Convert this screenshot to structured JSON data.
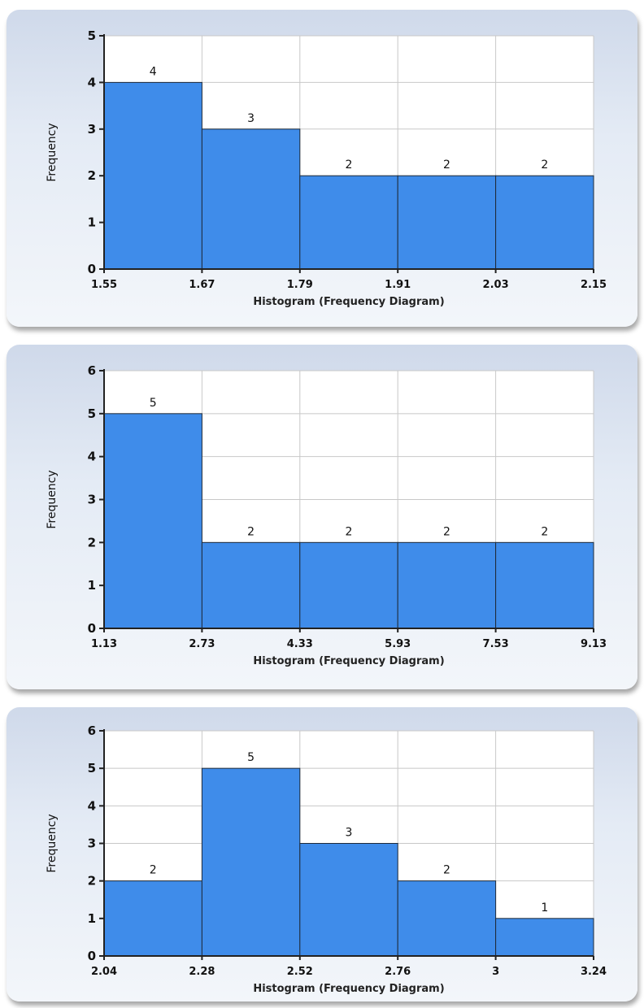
{
  "chart_data": [
    {
      "type": "bar",
      "title": "",
      "xlabel": "Histogram (Frequency Diagram)",
      "ylabel": "Frequency",
      "x_ticks": [
        "1.55",
        "1.67",
        "1.79",
        "1.91",
        "2.03",
        "2.15"
      ],
      "bins": [
        [
          1.55,
          1.67
        ],
        [
          1.67,
          1.79
        ],
        [
          1.79,
          1.91
        ],
        [
          1.91,
          2.03
        ],
        [
          2.03,
          2.15
        ]
      ],
      "values": [
        4,
        3,
        2,
        2,
        2
      ],
      "data_labels": [
        "4",
        "3",
        "2",
        "2",
        "2"
      ],
      "ylim": [
        0,
        5
      ],
      "y_ticks": [
        "0",
        "1",
        "2",
        "3",
        "4",
        "5"
      ],
      "grid": true,
      "bar_color": "#3f8cea"
    },
    {
      "type": "bar",
      "title": "",
      "xlabel": "Histogram (Frequency Diagram)",
      "ylabel": "Frequency",
      "x_ticks": [
        "1.13",
        "2.73",
        "4.33",
        "5.93",
        "7.53",
        "9.13"
      ],
      "bins": [
        [
          1.13,
          2.73
        ],
        [
          2.73,
          4.33
        ],
        [
          4.33,
          5.93
        ],
        [
          5.93,
          7.53
        ],
        [
          7.53,
          9.13
        ]
      ],
      "values": [
        5,
        2,
        2,
        2,
        2
      ],
      "data_labels": [
        "5",
        "2",
        "2",
        "2",
        "2"
      ],
      "ylim": [
        0,
        6
      ],
      "y_ticks": [
        "0",
        "1",
        "2",
        "3",
        "4",
        "5",
        "6"
      ],
      "grid": true,
      "bar_color": "#3f8cea"
    },
    {
      "type": "bar",
      "title": "",
      "xlabel": "Histogram (Frequency Diagram)",
      "ylabel": "Frequency",
      "x_ticks": [
        "2.04",
        "2.28",
        "2.52",
        "2.76",
        "3",
        "3.24"
      ],
      "bins": [
        [
          2.04,
          2.28
        ],
        [
          2.28,
          2.52
        ],
        [
          2.52,
          2.76
        ],
        [
          2.76,
          3.0
        ],
        [
          3.0,
          3.24
        ]
      ],
      "values": [
        2,
        5,
        3,
        2,
        1
      ],
      "data_labels": [
        "2",
        "5",
        "3",
        "2",
        "1"
      ],
      "ylim": [
        0,
        6
      ],
      "y_ticks": [
        "0",
        "1",
        "2",
        "3",
        "4",
        "5",
        "6"
      ],
      "grid": true,
      "bar_color": "#3f8cea"
    }
  ]
}
